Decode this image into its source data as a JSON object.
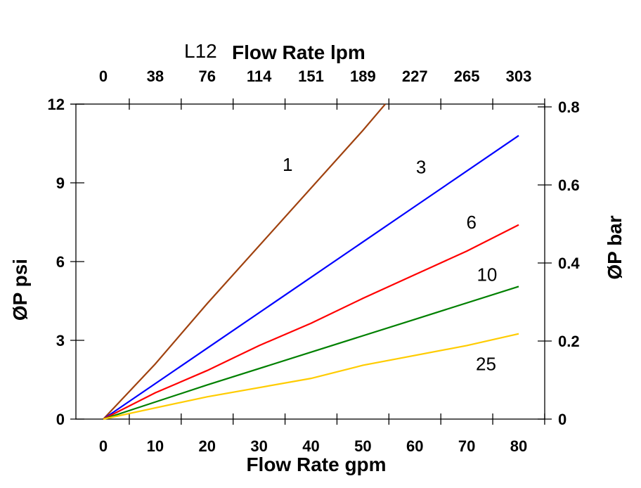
{
  "chart_data": {
    "type": "line",
    "title_prefix": "L12",
    "title": "Flow Rate lpm",
    "xlabel": "Flow Rate gpm",
    "ylabel": "ØP psi",
    "y2label": "ØP bar",
    "xlim": [
      -5.3,
      85
    ],
    "ylim": [
      0,
      12
    ],
    "y2lim": [
      0,
      0.8
    ],
    "x_ticks": [
      "0",
      "10",
      "20",
      "30",
      "40",
      "50",
      "60",
      "70",
      "80"
    ],
    "x_top_ticks": [
      "0",
      "38",
      "76",
      "114",
      "151",
      "189",
      "227",
      "265",
      "303"
    ],
    "y_ticks": [
      "0",
      "3",
      "6",
      "9",
      "12"
    ],
    "y2_ticks": [
      "0",
      "0.2",
      "0.4",
      "0.6",
      "0.8"
    ],
    "grid": false,
    "series": [
      {
        "name": "1",
        "color": "#a0420f",
        "points": [
          [
            0,
            0
          ],
          [
            10,
            2.1
          ],
          [
            20,
            4.4
          ],
          [
            30,
            6.6
          ],
          [
            40,
            8.8
          ],
          [
            50,
            11
          ],
          [
            54.3,
            12
          ]
        ],
        "label_at": [
          35.5,
          9.7
        ]
      },
      {
        "name": "3",
        "color": "#0000ff",
        "points": [
          [
            0,
            0
          ],
          [
            20,
            2.7
          ],
          [
            40,
            5.4
          ],
          [
            60,
            8.1
          ],
          [
            80,
            10.8
          ]
        ],
        "label_at": [
          61.2,
          9.6
        ]
      },
      {
        "name": "6",
        "color": "#ff0000",
        "points": [
          [
            0,
            0
          ],
          [
            10,
            1.0
          ],
          [
            20,
            1.85
          ],
          [
            30,
            2.8
          ],
          [
            40,
            3.65
          ],
          [
            50,
            4.6
          ],
          [
            60,
            5.5
          ],
          [
            70,
            6.4
          ],
          [
            80,
            7.4
          ]
        ],
        "label_at": [
          70.9,
          7.5
        ]
      },
      {
        "name": "10",
        "color": "#008000",
        "points": [
          [
            0,
            0
          ],
          [
            20,
            1.3
          ],
          [
            40,
            2.55
          ],
          [
            60,
            3.8
          ],
          [
            80,
            5.05
          ]
        ],
        "label_at": [
          73.9,
          5.5
        ]
      },
      {
        "name": "25",
        "color": "#ffcc00",
        "points": [
          [
            0,
            0
          ],
          [
            20,
            0.85
          ],
          [
            40,
            1.55
          ],
          [
            50,
            2.05
          ],
          [
            70,
            2.8
          ],
          [
            80,
            3.25
          ]
        ],
        "label_at": [
          73.7,
          2.1
        ]
      }
    ]
  }
}
